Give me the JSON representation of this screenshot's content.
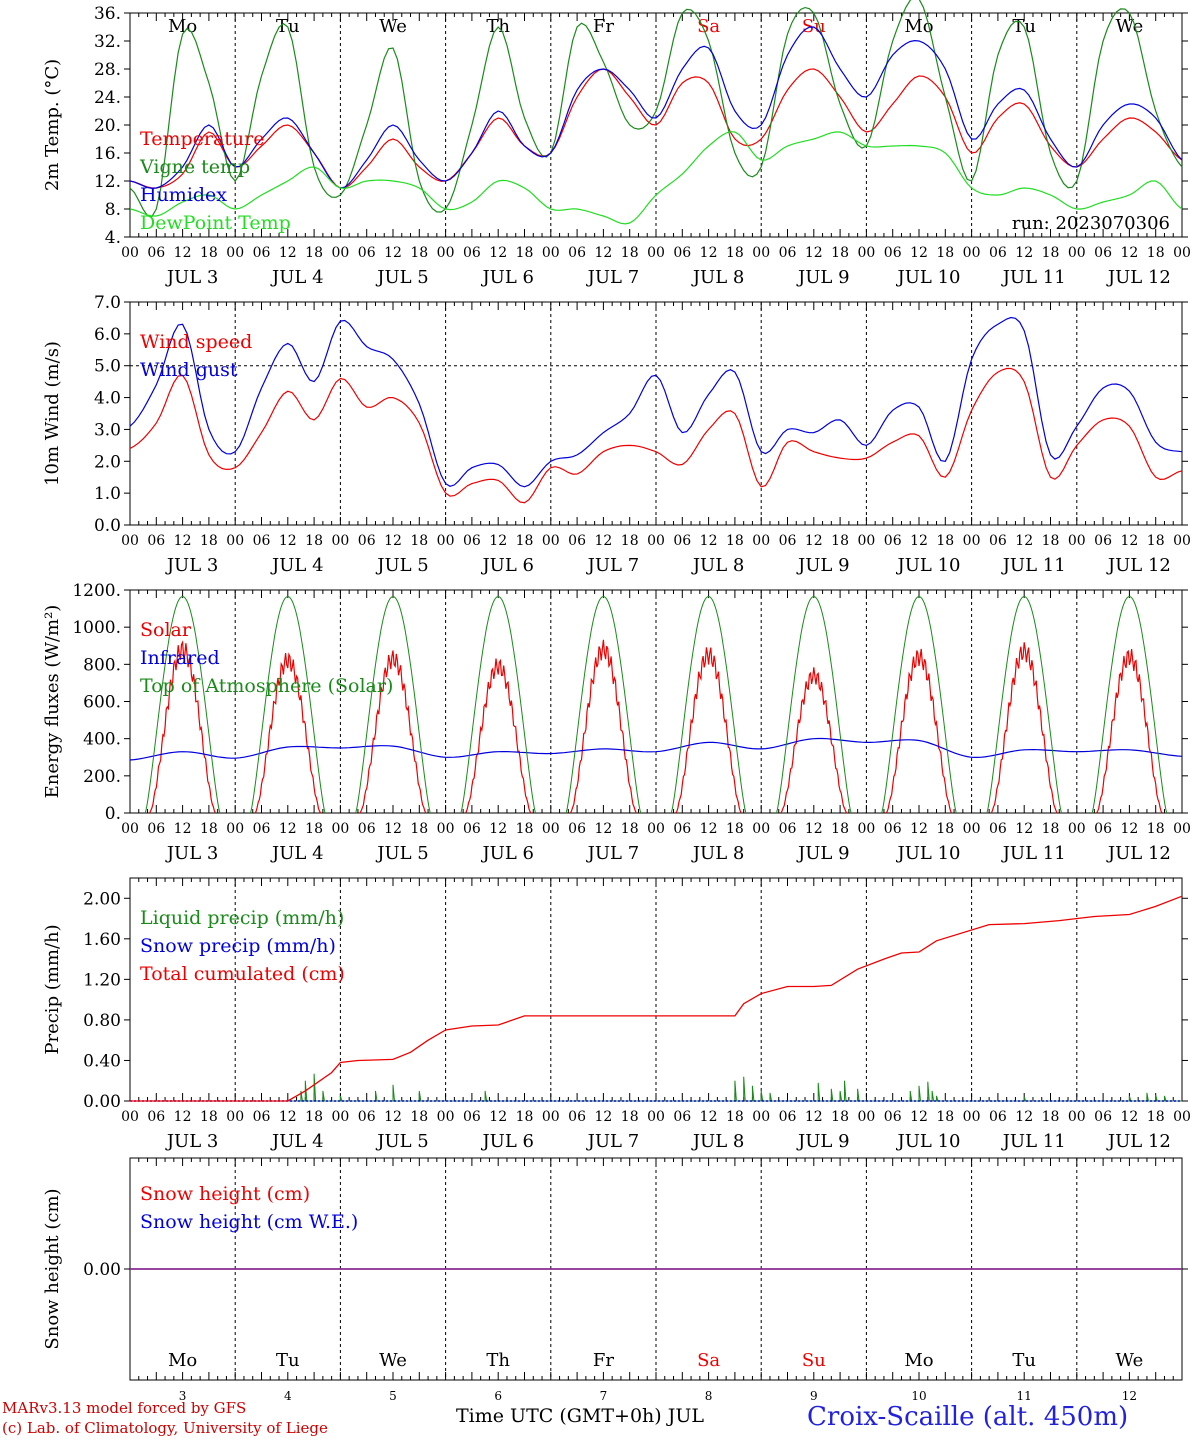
{
  "chart_data": {
    "type": "line",
    "run_label": "run: 2023070306",
    "hour_ticks": [
      "00",
      "06",
      "12",
      "18"
    ],
    "last_tick": "00",
    "days": [
      {
        "date": "JUL  3",
        "day": "Mo",
        "num": "3",
        "weekend": false
      },
      {
        "date": "JUL  4",
        "day": "Tu",
        "num": "4",
        "weekend": false
      },
      {
        "date": "JUL  5",
        "day": "We",
        "num": "5",
        "weekend": false
      },
      {
        "date": "JUL  6",
        "day": "Th",
        "num": "6",
        "weekend": false
      },
      {
        "date": "JUL  7",
        "day": "Fr",
        "num": "7",
        "weekend": false
      },
      {
        "date": "JUL  8",
        "day": "Sa",
        "num": "8",
        "weekend": true
      },
      {
        "date": "JUL  9",
        "day": "Su",
        "num": "9",
        "weekend": true
      },
      {
        "date": "JUL 10",
        "day": "Mo",
        "num": "10",
        "weekend": false
      },
      {
        "date": "JUL 11",
        "day": "Tu",
        "num": "11",
        "weekend": false
      },
      {
        "date": "JUL 12",
        "day": "We",
        "num": "12",
        "weekend": false
      }
    ],
    "x_unit": "hours since 2023-07-03 00 UTC",
    "panels": [
      {
        "id": "temp",
        "ylabel": "2m Temp. (°C)",
        "ylim": [
          4,
          36
        ],
        "yticks": [
          "4.",
          "8.",
          "12.",
          "16.",
          "20.",
          "24.",
          "28.",
          "32.",
          "36."
        ],
        "ytick_values": [
          4,
          8,
          12,
          16,
          20,
          24,
          28,
          32,
          36
        ],
        "show_days_inside": true,
        "series": [
          {
            "name": "Temperature",
            "color": "#ee0000",
            "x": [
              0,
              6,
              12,
              18,
              24,
              30,
              36,
              42,
              48,
              54,
              60,
              66,
              72,
              78,
              84,
              90,
              96,
              102,
              108,
              114,
              120,
              126,
              132,
              138,
              144,
              150,
              156,
              162,
              168,
              174,
              180,
              186,
              192,
              198,
              204,
              210,
              216,
              222,
              228,
              234,
              240
            ],
            "y": [
              12,
              11,
              13,
              19,
              14,
              17,
              20,
              16,
              11,
              14,
              18,
              14,
              12,
              16,
              21,
              17,
              16,
              24,
              28,
              24,
              20,
              26,
              26,
              18,
              18,
              25,
              28,
              24,
              19,
              23,
              27,
              24,
              16,
              21,
              23,
              17,
              14,
              18,
              21,
              19,
              15
            ]
          },
          {
            "name": "Vigne temp",
            "color": "#1a8a1a",
            "x": [
              0,
              6,
              12,
              18,
              24,
              30,
              36,
              42,
              48,
              54,
              60,
              66,
              72,
              78,
              84,
              90,
              96,
              102,
              108,
              114,
              120,
              126,
              132,
              138,
              144,
              150,
              156,
              162,
              168,
              174,
              180,
              186,
              192,
              198,
              204,
              210,
              216,
              222,
              228,
              234,
              240
            ],
            "y": [
              11,
              8,
              33,
              26,
              12,
              27,
              34,
              14,
              10,
              20,
              31,
              12,
              8,
              20,
              34,
              21,
              16,
              34,
              29,
              20,
              22,
              36,
              32,
              16,
              14,
              33,
              36,
              23,
              17,
              32,
              38,
              24,
              12,
              30,
              34,
              16,
              12,
              32,
              36,
              22,
              14
            ]
          },
          {
            "name": "Humidex",
            "color": "#0000dd",
            "x": [
              0,
              6,
              12,
              18,
              24,
              30,
              36,
              42,
              48,
              54,
              60,
              66,
              72,
              78,
              84,
              90,
              96,
              102,
              108,
              114,
              120,
              126,
              132,
              138,
              144,
              150,
              156,
              162,
              168,
              174,
              180,
              186,
              192,
              198,
              204,
              210,
              216,
              222,
              228,
              234,
              240
            ],
            "y": [
              12,
              11,
              14,
              20,
              14,
              18,
              21,
              16,
              11,
              15,
              20,
              15,
              12,
              16,
              22,
              17,
              16,
              25,
              28,
              25,
              21,
              28,
              31,
              22,
              20,
              30,
              34,
              28,
              24,
              30,
              32,
              28,
              18,
              23,
              25,
              18,
              14,
              20,
              23,
              21,
              15
            ]
          },
          {
            "name": "DewPoint Temp",
            "color": "#22dd22",
            "x": [
              0,
              6,
              12,
              18,
              24,
              30,
              36,
              42,
              48,
              54,
              60,
              66,
              72,
              78,
              84,
              90,
              96,
              102,
              108,
              114,
              120,
              126,
              132,
              138,
              144,
              150,
              156,
              162,
              168,
              174,
              180,
              186,
              192,
              198,
              204,
              210,
              216,
              222,
              228,
              234,
              240
            ],
            "y": [
              8,
              7,
              9,
              10,
              8,
              10,
              12,
              14,
              11,
              12,
              12,
              11,
              8,
              9,
              12,
              11,
              8,
              8,
              7,
              6,
              10,
              13,
              17,
              19,
              15,
              17,
              18,
              19,
              17,
              17,
              17,
              16,
              11,
              10,
              11,
              10,
              8,
              9,
              10,
              12,
              8
            ]
          }
        ]
      },
      {
        "id": "wind",
        "ylabel": "10m Wind (m/s)",
        "ylim": [
          0,
          7
        ],
        "yticks": [
          "0.0",
          "1.0",
          "2.0",
          "3.0",
          "4.0",
          "5.0",
          "6.0",
          "7.0"
        ],
        "ytick_values": [
          0,
          1,
          2,
          3,
          4,
          5,
          6,
          7
        ],
        "ref_line": 5,
        "series": [
          {
            "name": "Wind speed",
            "color": "#ee0000",
            "x": [
              0,
              6,
              12,
              18,
              24,
              30,
              36,
              42,
              48,
              54,
              60,
              66,
              72,
              78,
              84,
              90,
              96,
              102,
              108,
              114,
              120,
              126,
              132,
              138,
              144,
              150,
              156,
              162,
              168,
              174,
              180,
              186,
              192,
              198,
              204,
              210,
              216,
              222,
              228,
              234,
              240
            ],
            "y": [
              2.4,
              3.2,
              4.7,
              2.2,
              1.8,
              2.9,
              4.2,
              3.3,
              4.6,
              3.7,
              4.0,
              3.2,
              1.0,
              1.3,
              1.4,
              0.7,
              1.8,
              1.6,
              2.3,
              2.5,
              2.3,
              1.9,
              3.0,
              3.5,
              1.2,
              2.6,
              2.3,
              2.1,
              2.1,
              2.6,
              2.8,
              1.5,
              3.6,
              4.8,
              4.5,
              1.5,
              2.5,
              3.3,
              3.1,
              1.5,
              1.7
            ]
          },
          {
            "name": "Wind gust",
            "color": "#0000dd",
            "x": [
              0,
              6,
              12,
              18,
              24,
              30,
              36,
              42,
              48,
              54,
              60,
              66,
              72,
              78,
              84,
              90,
              96,
              102,
              108,
              114,
              120,
              126,
              132,
              138,
              144,
              150,
              156,
              162,
              168,
              174,
              180,
              186,
              192,
              198,
              204,
              210,
              216,
              222,
              228,
              234,
              240
            ],
            "y": [
              3.1,
              4.4,
              6.3,
              3.0,
              2.3,
              4.3,
              5.7,
              4.5,
              6.4,
              5.6,
              5.2,
              3.8,
              1.3,
              1.8,
              1.9,
              1.2,
              2.0,
              2.2,
              2.9,
              3.5,
              4.7,
              2.9,
              4.1,
              4.8,
              2.3,
              3.0,
              2.9,
              3.3,
              2.5,
              3.6,
              3.7,
              2.0,
              5.2,
              6.3,
              6.1,
              2.2,
              3.1,
              4.3,
              4.2,
              2.6,
              2.3
            ]
          }
        ]
      },
      {
        "id": "energy",
        "ylabel": "Energy fluxes (W/m²)",
        "ylim": [
          0,
          1200
        ],
        "yticks": [
          "0.",
          "200.",
          "400.",
          "600.",
          "800.",
          "1000.",
          "1200."
        ],
        "ytick_values": [
          0,
          200,
          400,
          600,
          800,
          1000,
          1200
        ],
        "series": [
          {
            "name": "Solar",
            "color": "#ee0000",
            "solar_peaks": [
              880,
              820,
              830,
              790,
              880,
              850,
              740,
              840,
              870,
              840
            ]
          },
          {
            "name": "Infrared",
            "color": "#0000dd",
            "x": [
              0,
              12,
              24,
              36,
              48,
              60,
              72,
              84,
              96,
              108,
              120,
              132,
              144,
              156,
              168,
              180,
              192,
              204,
              216,
              228,
              240
            ],
            "y": [
              285,
              330,
              295,
              355,
              350,
              360,
              300,
              330,
              320,
              345,
              330,
              380,
              345,
              400,
              380,
              390,
              300,
              340,
              330,
              340,
              305
            ]
          },
          {
            "name": "Top of Atmosphere (Solar)",
            "color": "#1a8a1a",
            "toa_peak": 1165
          }
        ]
      },
      {
        "id": "precip",
        "ylabel": "Precip (mm/h)",
        "ylim": [
          0,
          2.2
        ],
        "yticks": [
          "0.00",
          "0.40",
          "0.80",
          "1.20",
          "1.60",
          "2.00"
        ],
        "ytick_values": [
          0,
          0.4,
          0.8,
          1.2,
          1.6,
          2.0
        ],
        "series": [
          {
            "name": "Liquid precip (mm/h)",
            "color": "#1a8a1a",
            "x": [
              39,
              40,
              42,
              44,
              48,
              56,
              60,
              66,
              81,
              90,
              138,
              140,
              142,
              144,
              146,
              150,
              157,
              160,
              162,
              163,
              166,
              170,
              178,
              180,
              182,
              183,
              184,
              188,
              204,
              210,
              228,
              232,
              234,
              236
            ],
            "y": [
              0.1,
              0.2,
              0.27,
              0.1,
              0.05,
              0.1,
              0.16,
              0.1,
              0.1,
              0,
              0.2,
              0.24,
              0.15,
              0.1,
              0.08,
              0,
              0.18,
              0.12,
              0.1,
              0.2,
              0.12,
              0,
              0.1,
              0.15,
              0.19,
              0.1,
              0.05,
              0,
              0.04,
              0,
              0.05,
              0.08,
              0.06,
              0.05
            ]
          },
          {
            "name": "Snow precip (mm/h)",
            "color": "#0000dd",
            "x": [
              0,
              240
            ],
            "y": [
              0,
              0
            ]
          },
          {
            "name": "Total cumulated (cm)",
            "color": "#ee0000",
            "x": [
              0,
              36,
              40,
              46,
              48,
              52,
              60,
              64,
              68,
              72,
              78,
              84,
              90,
              96,
              138,
              140,
              144,
              150,
              156,
              160,
              166,
              172,
              176,
              180,
              184,
              196,
              204,
              212,
              220,
              228,
              234,
              240
            ],
            "y": [
              0,
              0,
              0.1,
              0.28,
              0.38,
              0.4,
              0.41,
              0.48,
              0.6,
              0.7,
              0.74,
              0.75,
              0.84,
              0.84,
              0.84,
              0.96,
              1.06,
              1.13,
              1.13,
              1.14,
              1.3,
              1.4,
              1.46,
              1.47,
              1.58,
              1.74,
              1.75,
              1.78,
              1.82,
              1.84,
              1.92,
              2.02
            ]
          }
        ]
      },
      {
        "id": "snow",
        "ylabel": "Snow height (cm)",
        "ylim": [
          -1,
          1
        ],
        "yticks": [
          "0.00"
        ],
        "ytick_values": [
          0
        ],
        "show_days_inside_bottom": true,
        "series": [
          {
            "name": "Snow height (cm)",
            "color": "#ee0000",
            "x": [
              0,
              240
            ],
            "y": [
              0,
              0
            ]
          },
          {
            "name": "Snow height (cm W.E.)",
            "color": "#0000dd",
            "x": [
              0,
              240
            ],
            "y": [
              0,
              0
            ]
          }
        ]
      }
    ]
  },
  "footer": {
    "model_line": "MARv3.13 model forced by GFS",
    "lab_line": "(c) Lab. of Climatology, University of Liege",
    "x_title": "Time UTC (GMT+0h) JUL",
    "station": "Croix-Scaille (alt. 450m)"
  },
  "colors": {
    "weekday": "#000000",
    "weekend": "#ee0000",
    "station": "#2222dd",
    "footer_text": "#cc0000"
  }
}
